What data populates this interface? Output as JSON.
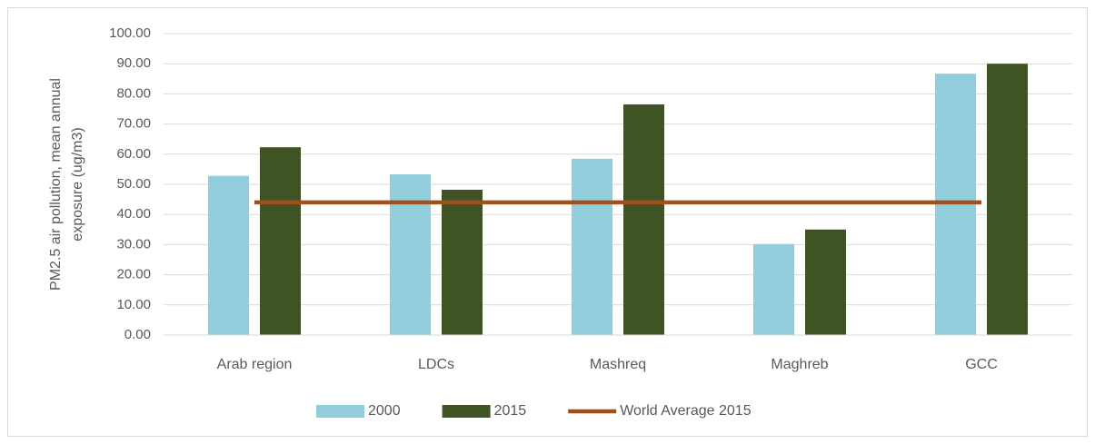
{
  "chart_data": {
    "type": "bar",
    "categories": [
      "Arab region",
      "LDCs",
      "Mashreq",
      "Maghreb",
      "GCC"
    ],
    "series": [
      {
        "name": "2000",
        "color": "#92cddc",
        "values": [
          52.8,
          53.3,
          58.5,
          30.2,
          86.7
        ]
      },
      {
        "name": "2015",
        "color": "#3f5324",
        "values": [
          62.3,
          48.2,
          76.5,
          35.0,
          90.0
        ]
      },
      {
        "name": "World Average 2015",
        "type": "line",
        "color": "#a0501a",
        "values": [
          44.0,
          44.0,
          44.0,
          44.0,
          44.0
        ]
      }
    ],
    "y_label": [
      "PM2.5 air pollution, mean annual",
      "exposure (ug/m3)"
    ],
    "ylim": [
      0,
      100
    ],
    "yticks": [
      {
        "value": 0,
        "label": "0.00"
      },
      {
        "value": 10,
        "label": "10.00"
      },
      {
        "value": 20,
        "label": "20.00"
      },
      {
        "value": 30,
        "label": "30.00"
      },
      {
        "value": 40,
        "label": "40.00"
      },
      {
        "value": 50,
        "label": "50.00"
      },
      {
        "value": 60,
        "label": "60.00"
      },
      {
        "value": 70,
        "label": "70.00"
      },
      {
        "value": 80,
        "label": "80.00"
      },
      {
        "value": 90,
        "label": "90.00"
      },
      {
        "value": 100,
        "label": "100.00"
      }
    ],
    "grid": true,
    "legend": "bottom"
  }
}
